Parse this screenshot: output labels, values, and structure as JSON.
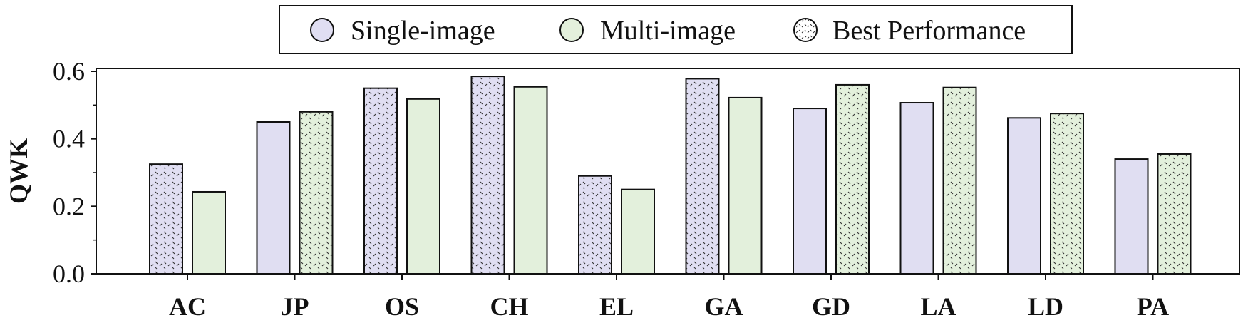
{
  "chart_data": {
    "type": "bar",
    "xlabel": "",
    "ylabel": "QWK",
    "ylim": [
      0,
      0.62
    ],
    "yticks": [
      "0.0",
      "0.2",
      "0.4",
      "0.6"
    ],
    "categories": [
      "AC",
      "JP",
      "OS",
      "CH",
      "EL",
      "GA",
      "GD",
      "LA",
      "LD",
      "PA"
    ],
    "series": [
      {
        "name": "Single-image",
        "color": "#e0def2",
        "values": [
          0.325,
          0.45,
          0.55,
          0.585,
          0.29,
          0.578,
          0.49,
          0.507,
          0.462,
          0.34
        ]
      },
      {
        "name": "Multi-image",
        "color": "#e3f0dc",
        "values": [
          0.243,
          0.48,
          0.518,
          0.554,
          0.25,
          0.522,
          0.56,
          0.552,
          0.475,
          0.355
        ]
      }
    ],
    "best_performance": {
      "label": "Best Performance",
      "pattern": "dotted-hatch"
    },
    "legend": {
      "position": "top",
      "items": [
        "Single-image",
        "Multi-image",
        "Best Performance"
      ]
    },
    "grid": false
  }
}
